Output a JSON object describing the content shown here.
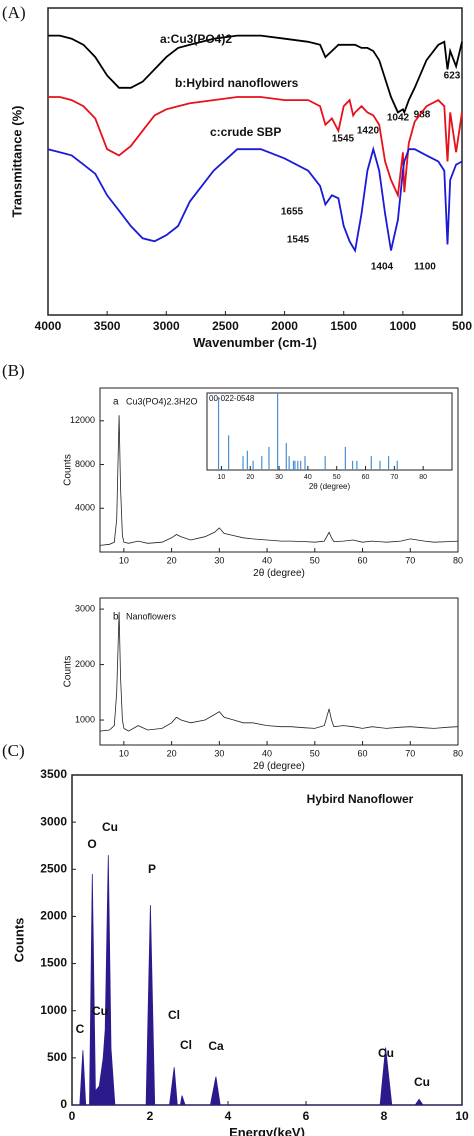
{
  "chart_data": [
    {
      "type": "line",
      "panel": "(A)",
      "xlabel": "Wavenumber (cm-1)",
      "ylabel": "Transmittance (%)",
      "xlim": [
        4000,
        500
      ],
      "ylim": [
        0,
        100
      ],
      "xticks": [
        4000,
        3500,
        3000,
        2500,
        2000,
        1500,
        1000,
        500
      ],
      "x": [
        4000,
        3900,
        3800,
        3700,
        3600,
        3500,
        3400,
        3300,
        3200,
        3100,
        3000,
        2900,
        2800,
        2600,
        2400,
        2200,
        2000,
        1800,
        1700,
        1655,
        1600,
        1545,
        1500,
        1450,
        1420,
        1404,
        1350,
        1300,
        1250,
        1200,
        1150,
        1100,
        1042,
        1000,
        988,
        950,
        900,
        800,
        700,
        650,
        623,
        600,
        550,
        500
      ],
      "series": [
        {
          "name": "a:Cu3(PO4)2",
          "color": "#000000",
          "labels": [
            "623",
            "1042",
            "988"
          ],
          "values": [
            91,
            91,
            90,
            88,
            84,
            78,
            74,
            74,
            76,
            80,
            84,
            87,
            88,
            90,
            91,
            91,
            90,
            89,
            88,
            84,
            86,
            88,
            88,
            88,
            88,
            88,
            87,
            87,
            86,
            83,
            77,
            71,
            66,
            67,
            66,
            70,
            74,
            83,
            88,
            89,
            80,
            86,
            81,
            89
          ]
        },
        {
          "name": "b:Hybird nanoflowers",
          "color": "#e8101a",
          "labels": [
            "1545",
            "1420"
          ],
          "values": [
            71,
            71,
            70,
            68,
            64,
            54,
            52,
            55,
            60,
            65,
            67,
            68,
            69,
            70,
            71,
            71,
            70,
            70,
            68,
            62,
            64,
            60,
            68,
            70,
            65,
            66,
            68,
            66,
            65,
            62,
            50,
            44,
            39,
            53,
            40,
            56,
            63,
            68,
            70,
            68,
            50,
            66,
            53,
            66
          ]
        },
        {
          "name": "c:crude SBP",
          "color": "#1a1ad8",
          "labels": [
            "1655",
            "1545",
            "1404",
            "1100"
          ],
          "values": [
            54,
            53,
            52,
            49,
            46,
            39,
            34,
            29,
            25,
            24,
            26,
            29,
            37,
            47,
            54,
            54,
            51,
            47,
            42,
            36,
            39,
            38,
            29,
            24,
            22,
            21,
            33,
            47,
            54,
            47,
            33,
            21,
            31,
            47,
            50,
            54,
            54,
            52,
            50,
            47,
            23,
            44,
            49,
            50
          ]
        }
      ]
    },
    {
      "type": "line",
      "panel": "(B)",
      "tag": "a",
      "title": "Cu3(PO4)2.3H2O",
      "xlabel": "2θ (degree)",
      "ylabel": "Counts",
      "color": "#222222",
      "xlim": [
        5,
        80
      ],
      "ylim": [
        0,
        15000
      ],
      "xticks": [
        10,
        20,
        30,
        40,
        50,
        60,
        70,
        80
      ],
      "yticks": [
        4000,
        8000,
        12000
      ],
      "x": [
        5,
        7,
        8,
        8.5,
        9,
        9.3,
        9.7,
        10,
        11,
        13,
        15,
        18,
        20,
        21,
        22,
        24,
        27,
        29,
        30,
        31,
        33,
        35,
        37,
        40,
        43,
        45,
        48,
        50,
        52,
        53,
        53.5,
        54,
        56,
        58,
        60,
        62,
        65,
        68,
        70,
        73,
        75,
        78,
        80
      ],
      "values": [
        600,
        700,
        900,
        3000,
        12500,
        6000,
        1500,
        900,
        800,
        1000,
        800,
        900,
        1300,
        1600,
        1400,
        1100,
        1400,
        1800,
        2200,
        1700,
        1500,
        1300,
        1200,
        1100,
        1000,
        1000,
        950,
        900,
        1000,
        1800,
        1300,
        950,
        1000,
        1100,
        900,
        1000,
        900,
        1000,
        1200,
        1000,
        900,
        950,
        1000
      ]
    },
    {
      "type": "stick",
      "title": "00-022-0548",
      "xlabel": "2θ (degree)",
      "color": "#4a8fd0",
      "xlim": [
        5,
        90
      ],
      "ylim": [
        0,
        100
      ],
      "xticks": [
        10,
        20,
        30,
        40,
        50,
        60,
        70,
        80
      ],
      "x": [
        9,
        12.5,
        17.5,
        19,
        21,
        24,
        26.5,
        29.5,
        32.5,
        33.5,
        35,
        35.5,
        36.5,
        37.5,
        39,
        46,
        53,
        55.5,
        57,
        62,
        65,
        68,
        71
      ],
      "values": [
        95,
        45,
        18,
        25,
        12,
        18,
        30,
        100,
        35,
        18,
        12,
        12,
        12,
        12,
        18,
        18,
        30,
        12,
        12,
        18,
        12,
        18,
        12
      ]
    },
    {
      "type": "line",
      "tag": "b",
      "title": "Nanoflowers",
      "xlabel": "2θ (degree)",
      "ylabel": "Counts",
      "color": "#222222",
      "xlim": [
        5,
        80
      ],
      "ylim": [
        550,
        3200
      ],
      "xticks": [
        10,
        20,
        30,
        40,
        50,
        60,
        70,
        80
      ],
      "yticks": [
        1000,
        2000,
        3000
      ],
      "x": [
        5,
        7,
        8,
        8.5,
        9,
        9.3,
        9.7,
        10,
        11,
        13,
        15,
        18,
        20,
        21,
        22,
        24,
        27,
        29,
        30,
        31,
        33,
        35,
        37,
        40,
        43,
        45,
        48,
        50,
        52,
        53,
        53.5,
        54,
        56,
        58,
        60,
        62,
        65,
        68,
        70,
        73,
        75,
        78,
        80
      ],
      "values": [
        800,
        820,
        900,
        1500,
        2950,
        1800,
        1000,
        850,
        800,
        900,
        820,
        850,
        950,
        1050,
        1000,
        950,
        1000,
        1100,
        1150,
        1050,
        1000,
        950,
        950,
        900,
        880,
        880,
        860,
        850,
        900,
        1200,
        1000,
        880,
        900,
        880,
        850,
        880,
        850,
        870,
        880,
        860,
        850,
        870,
        880
      ]
    },
    {
      "type": "area",
      "panel": "(C)",
      "title": "Hybird Nanoflower",
      "xlabel": "Energy(keV)",
      "ylabel": "Counts",
      "color": "#2a1a8c",
      "xlim": [
        0,
        10
      ],
      "ylim": [
        0,
        3500
      ],
      "xticks": [
        0,
        2,
        4,
        6,
        8,
        10
      ],
      "yticks": [
        0,
        500,
        1000,
        1500,
        2000,
        2500,
        3000,
        3500
      ],
      "peak_labels": [
        "C",
        "O",
        "Cu",
        "Cu",
        "P",
        "Cl",
        "Cl",
        "Ca",
        "Cu",
        "Cu"
      ],
      "x": [
        0,
        0.2,
        0.28,
        0.35,
        0.45,
        0.52,
        0.6,
        0.7,
        0.8,
        0.85,
        0.93,
        1.0,
        1.1,
        1.9,
        2.01,
        2.12,
        2.5,
        2.62,
        2.7,
        2.78,
        2.82,
        2.9,
        3.55,
        3.69,
        3.8,
        7.9,
        8.04,
        8.2,
        8.8,
        8.9,
        9.0,
        10
      ],
      "values": [
        0,
        0,
        580,
        0,
        0,
        2450,
        150,
        200,
        500,
        800,
        2650,
        600,
        0,
        0,
        2120,
        0,
        0,
        400,
        0,
        0,
        100,
        0,
        0,
        300,
        0,
        0,
        610,
        0,
        0,
        60,
        0,
        0
      ]
    }
  ]
}
